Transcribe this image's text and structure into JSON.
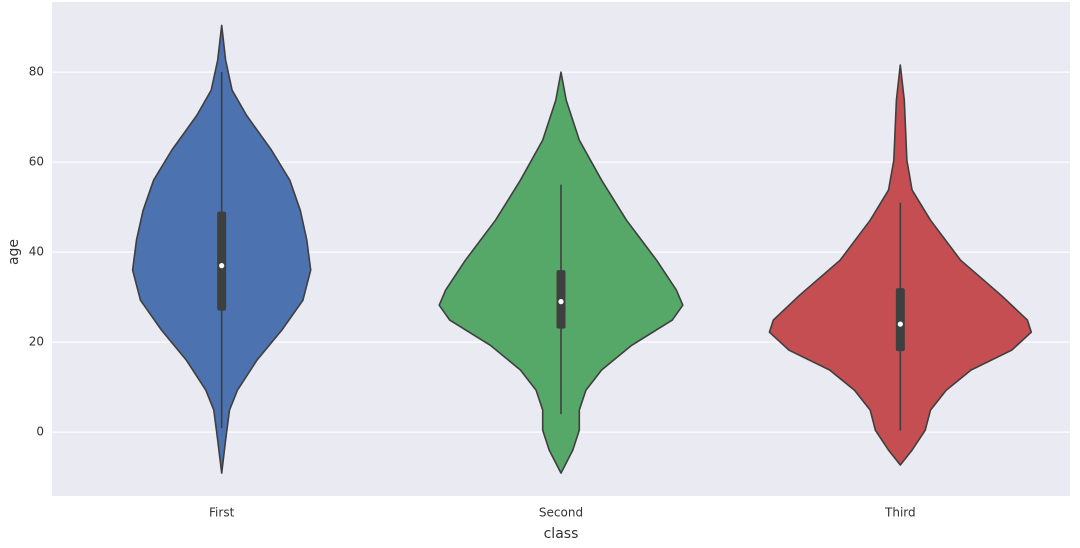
{
  "chart_data": {
    "type": "violin",
    "x_label": "class",
    "y_label": "age",
    "categories": [
      "First",
      "Second",
      "Third"
    ],
    "ylim": [
      -14.2,
      95.6
    ],
    "yticks": [
      0,
      20,
      40,
      60,
      80
    ],
    "grid": true,
    "violins": [
      {
        "color": "#4c72b0",
        "ages": [
          90.4,
          82.7,
          76,
          70.4,
          62.7,
          56,
          49.3,
          42.7,
          36,
          29.3,
          22.7,
          16,
          9.3,
          4.9,
          -1.8,
          -9.1
        ],
        "density": [
          0,
          0.03,
          0.08,
          0.19,
          0.38,
          0.52,
          0.6,
          0.65,
          0.68,
          0.62,
          0.46,
          0.27,
          0.12,
          0.06,
          0.03,
          0
        ],
        "whisker_low": 0.9,
        "q1": 27,
        "median": 37,
        "q3": 49,
        "whisker_high": 80
      },
      {
        "color": "#55a868",
        "ages": [
          80,
          73.8,
          64.9,
          56,
          47.1,
          38.2,
          31.6,
          28.2,
          24.9,
          19.3,
          13.8,
          9.3,
          4.9,
          0.4,
          -4,
          -9.1
        ],
        "density": [
          0,
          0.04,
          0.14,
          0.31,
          0.5,
          0.73,
          0.88,
          0.93,
          0.85,
          0.54,
          0.31,
          0.19,
          0.14,
          0.14,
          0.09,
          0
        ],
        "whisker_low": 4,
        "q1": 23,
        "median": 29,
        "q3": 36,
        "whisker_high": 55
      },
      {
        "color": "#c44e52",
        "ages": [
          81.6,
          73.8,
          60.4,
          53.8,
          47.1,
          38.2,
          30.4,
          24.9,
          22.2,
          18.2,
          13.8,
          9.3,
          4.9,
          0.4,
          -4,
          -7.3
        ],
        "density": [
          0,
          0.03,
          0.05,
          0.09,
          0.23,
          0.46,
          0.77,
          0.97,
          1,
          0.85,
          0.54,
          0.35,
          0.23,
          0.19,
          0.09,
          0
        ],
        "whisker_low": 0.4,
        "q1": 18,
        "median": 24,
        "q3": 32,
        "whisker_high": 51
      }
    ]
  }
}
